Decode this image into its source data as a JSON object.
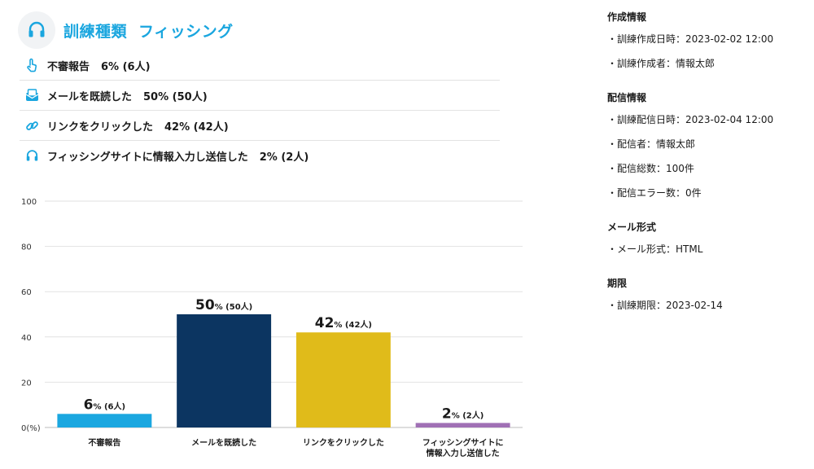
{
  "header": {
    "title": "訓練種類",
    "type": "フィッシング",
    "icon": "headset-icon"
  },
  "stats": [
    {
      "icon": "hand-touch-icon",
      "label": "不審報告",
      "value": "6% (6人)"
    },
    {
      "icon": "envelope-open-icon",
      "label": "メールを既読した",
      "value": "50% (50人)"
    },
    {
      "icon": "link-icon",
      "label": "リンクをクリックした",
      "value": "42% (42人)"
    },
    {
      "icon": "headset-icon",
      "label": "フィッシングサイトに情報入力し送信した",
      "value": "2% (2人)"
    }
  ],
  "chart_data": {
    "type": "bar",
    "categories": [
      "不審報告",
      "メールを既読した",
      "リンクをクリックした",
      "フィッシングサイトに情報入力し送信した"
    ],
    "category_lines": [
      [
        "不審報告"
      ],
      [
        "メールを既読した"
      ],
      [
        "リンクをクリックした"
      ],
      [
        "フィッシングサイトに",
        "情報入力し送信した"
      ]
    ],
    "values": [
      6,
      50,
      42,
      2
    ],
    "data_labels_big": [
      "6",
      "50",
      "42",
      "2"
    ],
    "data_labels_small": [
      "% (6人)",
      "% (50人)",
      "% (42人)",
      "% (2人)"
    ],
    "colors": [
      "#1ba7e0",
      "#0c3561",
      "#e0bb1a",
      "#a070b5"
    ],
    "ylim": [
      0,
      100
    ],
    "yticks": [
      0,
      20,
      40,
      60,
      80,
      100
    ],
    "ytick_labels": [
      "0(%)",
      "20",
      "40",
      "60",
      "80",
      "100"
    ],
    "grid": true
  },
  "info": [
    {
      "title": "作成情報",
      "items": [
        "・訓練作成日時：2023-02-02 12:00",
        "・訓練作成者：情報太郎"
      ]
    },
    {
      "title": "配信情報",
      "items": [
        "・訓練配信日時：2023-02-04 12:00",
        "・配信者：情報太郎",
        "・配信総数：100件",
        "・配信エラー数：0件"
      ]
    },
    {
      "title": "メール形式",
      "items": [
        "・メール形式：HTML"
      ]
    },
    {
      "title": "期限",
      "items": [
        "・訓練期限：2023-02-14"
      ]
    }
  ]
}
